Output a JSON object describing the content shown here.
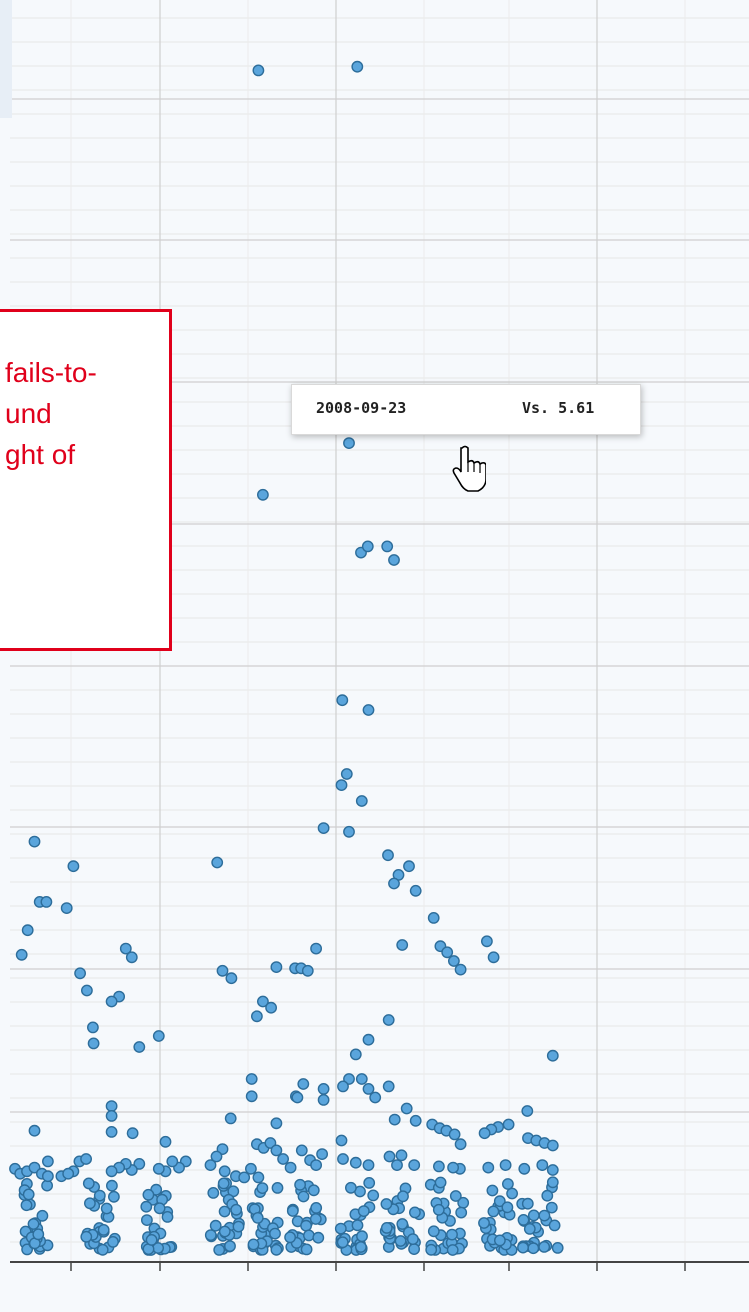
{
  "annotation": {
    "text": "fails-to-\nund\nght of"
  },
  "tooltip": {
    "date": "2008-09-23",
    "value": "Vs. 5.61"
  },
  "colors": {
    "point_fill": "#5aa5dc",
    "point_stroke": "#2d6d9a",
    "annotation_border": "#e0001b",
    "grid": "#cfcfcf"
  },
  "cursor_icon": "hand-pointer-icon",
  "chart_data": {
    "type": "scatter",
    "title": "",
    "xlabel": "",
    "ylabel": "",
    "grid": true,
    "points": [
      [
        0.345,
        0.959
      ],
      [
        0.477,
        0.962
      ],
      [
        0.466,
        0.656
      ],
      [
        0.351,
        0.614
      ],
      [
        0.482,
        0.567
      ],
      [
        0.491,
        0.572
      ],
      [
        0.517,
        0.572
      ],
      [
        0.526,
        0.561
      ],
      [
        0.457,
        0.447
      ],
      [
        0.492,
        0.439
      ],
      [
        0.463,
        0.387
      ],
      [
        0.456,
        0.378
      ],
      [
        0.483,
        0.365
      ],
      [
        0.432,
        0.343
      ],
      [
        0.466,
        0.34
      ],
      [
        0.046,
        0.332
      ],
      [
        0.29,
        0.315
      ],
      [
        0.518,
        0.321
      ],
      [
        0.098,
        0.312
      ],
      [
        0.532,
        0.305
      ],
      [
        0.526,
        0.298
      ],
      [
        0.546,
        0.312
      ],
      [
        0.555,
        0.292
      ],
      [
        0.053,
        0.283
      ],
      [
        0.062,
        0.283
      ],
      [
        0.089,
        0.278
      ],
      [
        0.579,
        0.27
      ],
      [
        0.037,
        0.26
      ],
      [
        0.65,
        0.251
      ],
      [
        0.588,
        0.247
      ],
      [
        0.029,
        0.24
      ],
      [
        0.168,
        0.245
      ],
      [
        0.176,
        0.238
      ],
      [
        0.422,
        0.245
      ],
      [
        0.537,
        0.248
      ],
      [
        0.597,
        0.242
      ],
      [
        0.606,
        0.235
      ],
      [
        0.659,
        0.238
      ],
      [
        0.615,
        0.228
      ],
      [
        0.369,
        0.23
      ],
      [
        0.394,
        0.229
      ],
      [
        0.402,
        0.229
      ],
      [
        0.411,
        0.227
      ],
      [
        0.107,
        0.225
      ],
      [
        0.297,
        0.227
      ],
      [
        0.309,
        0.221
      ],
      [
        0.116,
        0.211
      ],
      [
        0.159,
        0.206
      ],
      [
        0.149,
        0.202
      ],
      [
        0.351,
        0.202
      ],
      [
        0.362,
        0.197
      ],
      [
        0.343,
        0.19
      ],
      [
        0.124,
        0.181
      ],
      [
        0.519,
        0.187
      ],
      [
        0.212,
        0.174
      ],
      [
        0.492,
        0.171
      ],
      [
        0.125,
        0.168
      ],
      [
        0.186,
        0.165
      ],
      [
        0.475,
        0.159
      ],
      [
        0.738,
        0.158
      ],
      [
        0.336,
        0.139
      ],
      [
        0.466,
        0.139
      ],
      [
        0.458,
        0.133
      ],
      [
        0.483,
        0.139
      ],
      [
        0.492,
        0.131
      ],
      [
        0.405,
        0.135
      ],
      [
        0.432,
        0.131
      ],
      [
        0.519,
        0.133
      ],
      [
        0.395,
        0.125
      ],
      [
        0.432,
        0.122
      ],
      [
        0.336,
        0.125
      ],
      [
        0.397,
        0.124
      ],
      [
        0.501,
        0.124
      ],
      [
        0.543,
        0.115
      ],
      [
        0.149,
        0.117
      ],
      [
        0.704,
        0.113
      ],
      [
        0.149,
        0.109
      ],
      [
        0.308,
        0.107
      ],
      [
        0.369,
        0.103
      ],
      [
        0.527,
        0.106
      ],
      [
        0.555,
        0.105
      ],
      [
        0.577,
        0.102
      ],
      [
        0.587,
        0.099
      ],
      [
        0.596,
        0.097
      ],
      [
        0.607,
        0.094
      ],
      [
        0.615,
        0.086
      ],
      [
        0.679,
        0.102
      ],
      [
        0.665,
        0.1
      ],
      [
        0.656,
        0.098
      ],
      [
        0.647,
        0.095
      ],
      [
        0.705,
        0.091
      ],
      [
        0.716,
        0.089
      ],
      [
        0.727,
        0.087
      ],
      [
        0.738,
        0.085
      ],
      [
        0.738,
        0.065
      ],
      [
        0.046,
        0.097
      ],
      [
        0.149,
        0.096
      ],
      [
        0.177,
        0.095
      ],
      [
        0.221,
        0.088
      ],
      [
        0.064,
        0.072
      ],
      [
        0.106,
        0.072
      ],
      [
        0.115,
        0.074
      ],
      [
        0.098,
        0.064
      ],
      [
        0.456,
        0.089
      ],
      [
        0.614,
        0.066
      ],
      [
        0.52,
        0.076
      ],
      [
        0.536,
        0.077
      ],
      [
        0.297,
        0.082
      ],
      [
        0.289,
        0.076
      ],
      [
        0.281,
        0.069
      ],
      [
        0.248,
        0.072
      ],
      [
        0.239,
        0.067
      ],
      [
        0.23,
        0.072
      ],
      [
        0.221,
        0.064
      ],
      [
        0.212,
        0.066
      ],
      [
        0.186,
        0.07
      ],
      [
        0.176,
        0.065
      ],
      [
        0.168,
        0.07
      ],
      [
        0.159,
        0.067
      ],
      [
        0.149,
        0.064
      ],
      [
        0.343,
        0.086
      ],
      [
        0.352,
        0.083
      ],
      [
        0.361,
        0.087
      ],
      [
        0.369,
        0.081
      ],
      [
        0.378,
        0.074
      ],
      [
        0.388,
        0.067
      ],
      [
        0.403,
        0.081
      ],
      [
        0.414,
        0.073
      ],
      [
        0.422,
        0.069
      ],
      [
        0.43,
        0.078
      ],
      [
        0.458,
        0.074
      ],
      [
        0.475,
        0.071
      ],
      [
        0.492,
        0.069
      ],
      [
        0.53,
        0.069
      ],
      [
        0.553,
        0.069
      ],
      [
        0.586,
        0.068
      ],
      [
        0.605,
        0.067
      ],
      [
        0.652,
        0.067
      ],
      [
        0.675,
        0.069
      ],
      [
        0.7,
        0.066
      ],
      [
        0.724,
        0.069
      ],
      [
        0.738,
        0.055
      ],
      [
        0.02,
        0.066
      ],
      [
        0.027,
        0.062
      ],
      [
        0.036,
        0.064
      ],
      [
        0.046,
        0.067
      ],
      [
        0.056,
        0.062
      ],
      [
        0.064,
        0.06
      ],
      [
        0.082,
        0.06
      ],
      [
        0.091,
        0.062
      ],
      [
        0.3,
        0.064
      ],
      [
        0.315,
        0.06
      ],
      [
        0.326,
        0.059
      ],
      [
        0.335,
        0.066
      ],
      [
        0.345,
        0.059
      ]
    ],
    "dense_band": {
      "x_range": [
        0.015,
        0.745
      ],
      "y_range": [
        0.0,
        0.055
      ]
    }
  }
}
